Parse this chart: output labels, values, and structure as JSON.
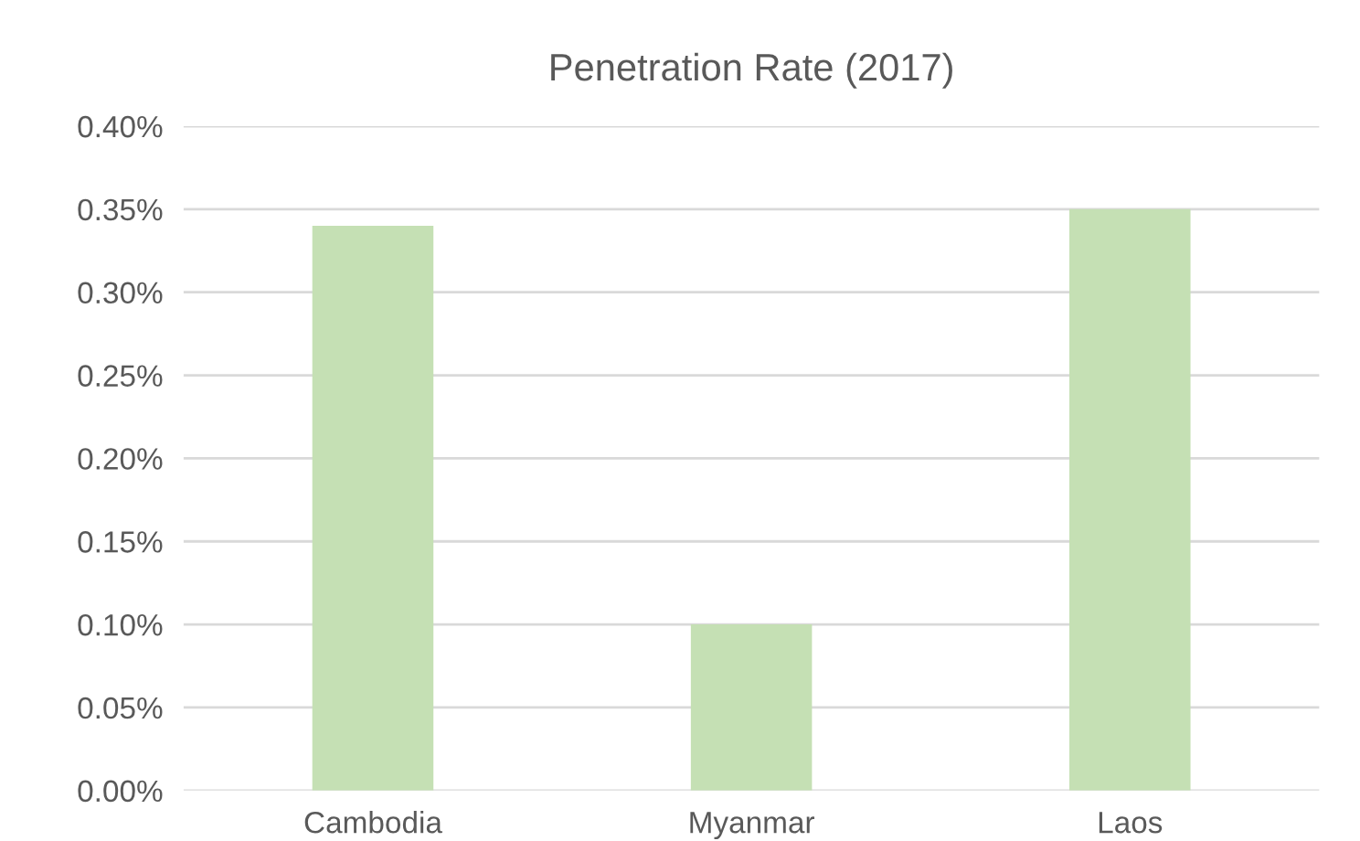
{
  "chart_data": {
    "type": "bar",
    "title": "Penetration Rate (2017)",
    "categories": [
      "Cambodia",
      "Myanmar",
      "Laos"
    ],
    "values": [
      0.34,
      0.1,
      0.35
    ],
    "color": "#c5e0b4",
    "ylim": [
      0,
      0.4
    ],
    "yticks": [
      {
        "value": 0,
        "label": "0.00%"
      },
      {
        "value": 0.05,
        "label": "0.05%"
      },
      {
        "value": 0.1,
        "label": "0.10%"
      },
      {
        "value": 0.15,
        "label": "0.15%"
      },
      {
        "value": 0.2,
        "label": "0.20%"
      },
      {
        "value": 0.25,
        "label": "0.25%"
      },
      {
        "value": 0.3,
        "label": "0.30%"
      },
      {
        "value": 0.35,
        "label": "0.35%"
      },
      {
        "value": 0.4,
        "label": "0.40%"
      }
    ],
    "grid": "y",
    "legend": false
  }
}
